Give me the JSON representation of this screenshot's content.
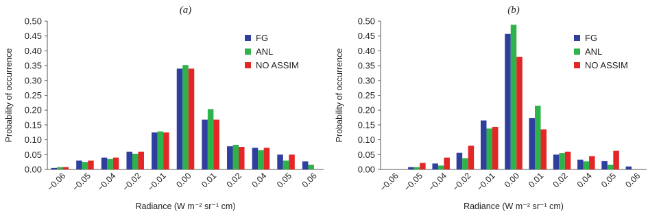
{
  "chart_data": [
    {
      "type": "bar",
      "panel_label": "(a)",
      "categories": [
        "−0.06",
        "−0.05",
        "−0.04",
        "−0.02",
        "−0.01",
        "0.00",
        "0.01",
        "0.02",
        "0.04",
        "0.05",
        "0.06"
      ],
      "series": [
        {
          "name": "FG",
          "color": "#2f3f9e",
          "values": [
            0.005,
            0.03,
            0.04,
            0.06,
            0.125,
            0.34,
            0.168,
            0.078,
            0.073,
            0.05,
            0.027
          ]
        },
        {
          "name": "ANL",
          "color": "#2db34a",
          "values": [
            0.008,
            0.025,
            0.035,
            0.053,
            0.128,
            0.352,
            0.203,
            0.083,
            0.065,
            0.03,
            0.016
          ]
        },
        {
          "name": "NO ASSIM",
          "color": "#e32626",
          "values": [
            0.008,
            0.03,
            0.04,
            0.06,
            0.125,
            0.34,
            0.168,
            0.076,
            0.073,
            0.05,
            0.0
          ]
        }
      ],
      "xlabel": "Radiance (W m⁻² sr⁻¹ cm)",
      "ylabel": "Probability of occurrence",
      "ylim": [
        0,
        0.5
      ],
      "yticks": [
        "0.00",
        "0.05",
        "0.10",
        "0.15",
        "0.20",
        "0.25",
        "0.30",
        "0.35",
        "0.40",
        "0.45",
        "0.50"
      ],
      "legend_position": "top-right",
      "grid": false
    },
    {
      "type": "bar",
      "panel_label": "(b)",
      "categories": [
        "−0.06",
        "−0.05",
        "−0.04",
        "−0.02",
        "−0.01",
        "0.00",
        "0.01",
        "0.02",
        "0.04",
        "0.05",
        "0.06"
      ],
      "series": [
        {
          "name": "FG",
          "color": "#2f3f9e",
          "values": [
            0.0,
            0.008,
            0.02,
            0.056,
            0.165,
            0.457,
            0.173,
            0.05,
            0.033,
            0.028,
            0.01
          ]
        },
        {
          "name": "ANL",
          "color": "#2db34a",
          "values": [
            0.0,
            0.008,
            0.013,
            0.038,
            0.138,
            0.488,
            0.215,
            0.055,
            0.027,
            0.016,
            0.0
          ]
        },
        {
          "name": "NO ASSIM",
          "color": "#e32626",
          "values": [
            0.0,
            0.022,
            0.04,
            0.08,
            0.143,
            0.38,
            0.135,
            0.06,
            0.045,
            0.063,
            0.0
          ]
        }
      ],
      "xlabel": "Radiance (W m⁻² sr⁻¹ cm)",
      "ylabel": "Probability of occurrence",
      "ylim": [
        0,
        0.5
      ],
      "yticks": [
        "0.00",
        "0.05",
        "0.10",
        "0.15",
        "0.20",
        "0.25",
        "0.30",
        "0.35",
        "0.40",
        "0.45",
        "0.50"
      ],
      "legend_position": "top-right",
      "grid": false
    }
  ]
}
